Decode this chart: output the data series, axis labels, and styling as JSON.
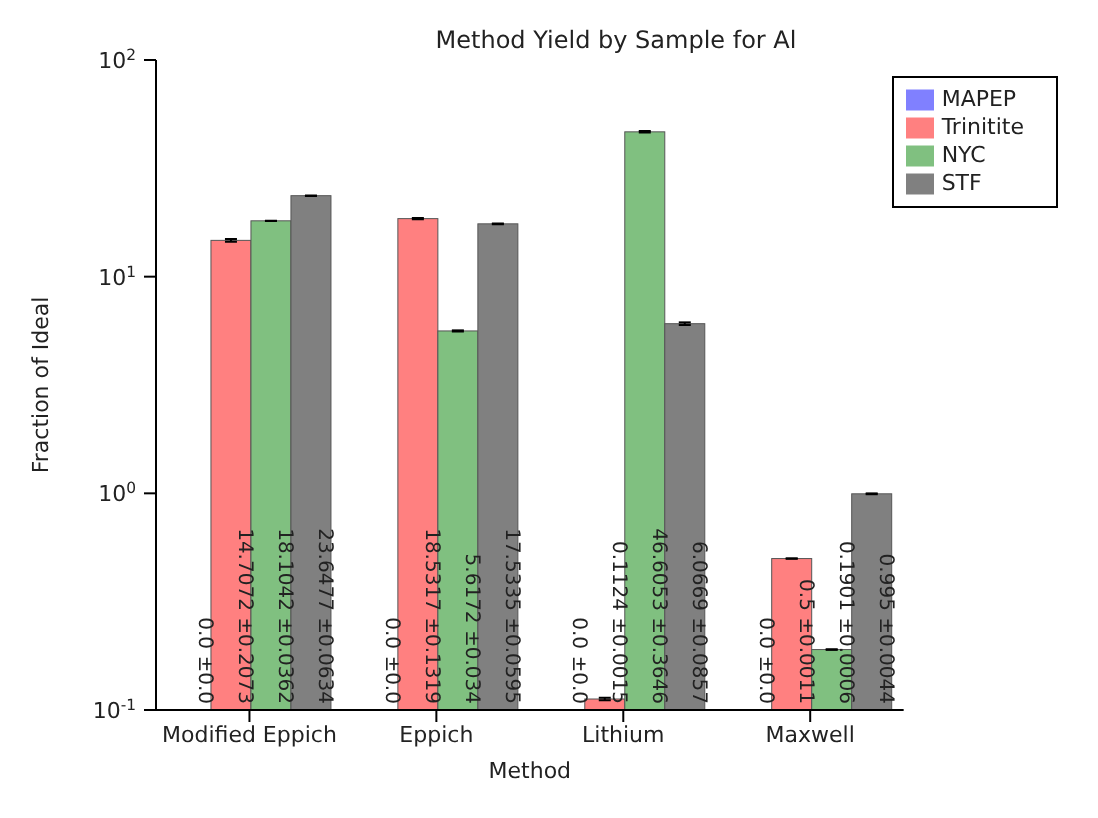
{
  "chart_data": {
    "type": "bar",
    "title": "Method Yield by Sample for Al",
    "xlabel": "Method",
    "ylabel": "Fraction of Ideal",
    "categories": [
      "Modified Eppich",
      "Eppich",
      "Lithium",
      "Maxwell"
    ],
    "series": [
      {
        "name": "MAPEP",
        "color": "#8080ff",
        "values": [
          null,
          null,
          null,
          null
        ],
        "errors": [
          null,
          null,
          null,
          null
        ],
        "value_labels": [
          "0.0 ±0.0",
          "0.0 ±0.0",
          "0.0 ±0.0",
          "0.0 ±0.0"
        ]
      },
      {
        "name": "Trinitite",
        "color": "#ff8080",
        "values": [
          14.7072,
          18.5317,
          0.1124,
          0.5
        ],
        "errors": [
          0.2073,
          0.1319,
          0.0015,
          0.0011
        ],
        "value_labels": [
          "14.7072 ±0.2073",
          "18.5317 ±0.1319",
          "0.1124 ±0.0015",
          "0.5 ±0.0011"
        ]
      },
      {
        "name": "NYC",
        "color": "#80c080",
        "values": [
          18.1042,
          5.6172,
          46.6053,
          0.1901
        ],
        "errors": [
          0.0362,
          0.034,
          0.3646,
          0.0006
        ],
        "value_labels": [
          "18.1042 ±0.0362",
          "5.6172 ±0.034",
          "46.6053 ±0.3646",
          "0.1901 ±0.0006"
        ]
      },
      {
        "name": "STF",
        "color": "#808080",
        "values": [
          23.6477,
          17.5335,
          6.0669,
          0.995
        ],
        "errors": [
          0.0634,
          0.0595,
          0.0857,
          0.0044
        ],
        "value_labels": [
          "23.6477 ±0.0634",
          "17.5335 ±0.0595",
          "6.0669 ±0.0857",
          "0.995 ±0.0044"
        ]
      }
    ],
    "log": true,
    "ylim": [
      0.1,
      100
    ],
    "yticks": [
      {
        "value": 0.1,
        "label": "10$^{-1}$"
      },
      {
        "value": 1,
        "label": "10$^{0}$"
      },
      {
        "value": 10,
        "label": "10$^{1}$"
      },
      {
        "value": 100,
        "label": "10$^{2}$"
      }
    ],
    "legend": "top right",
    "grid": false
  }
}
